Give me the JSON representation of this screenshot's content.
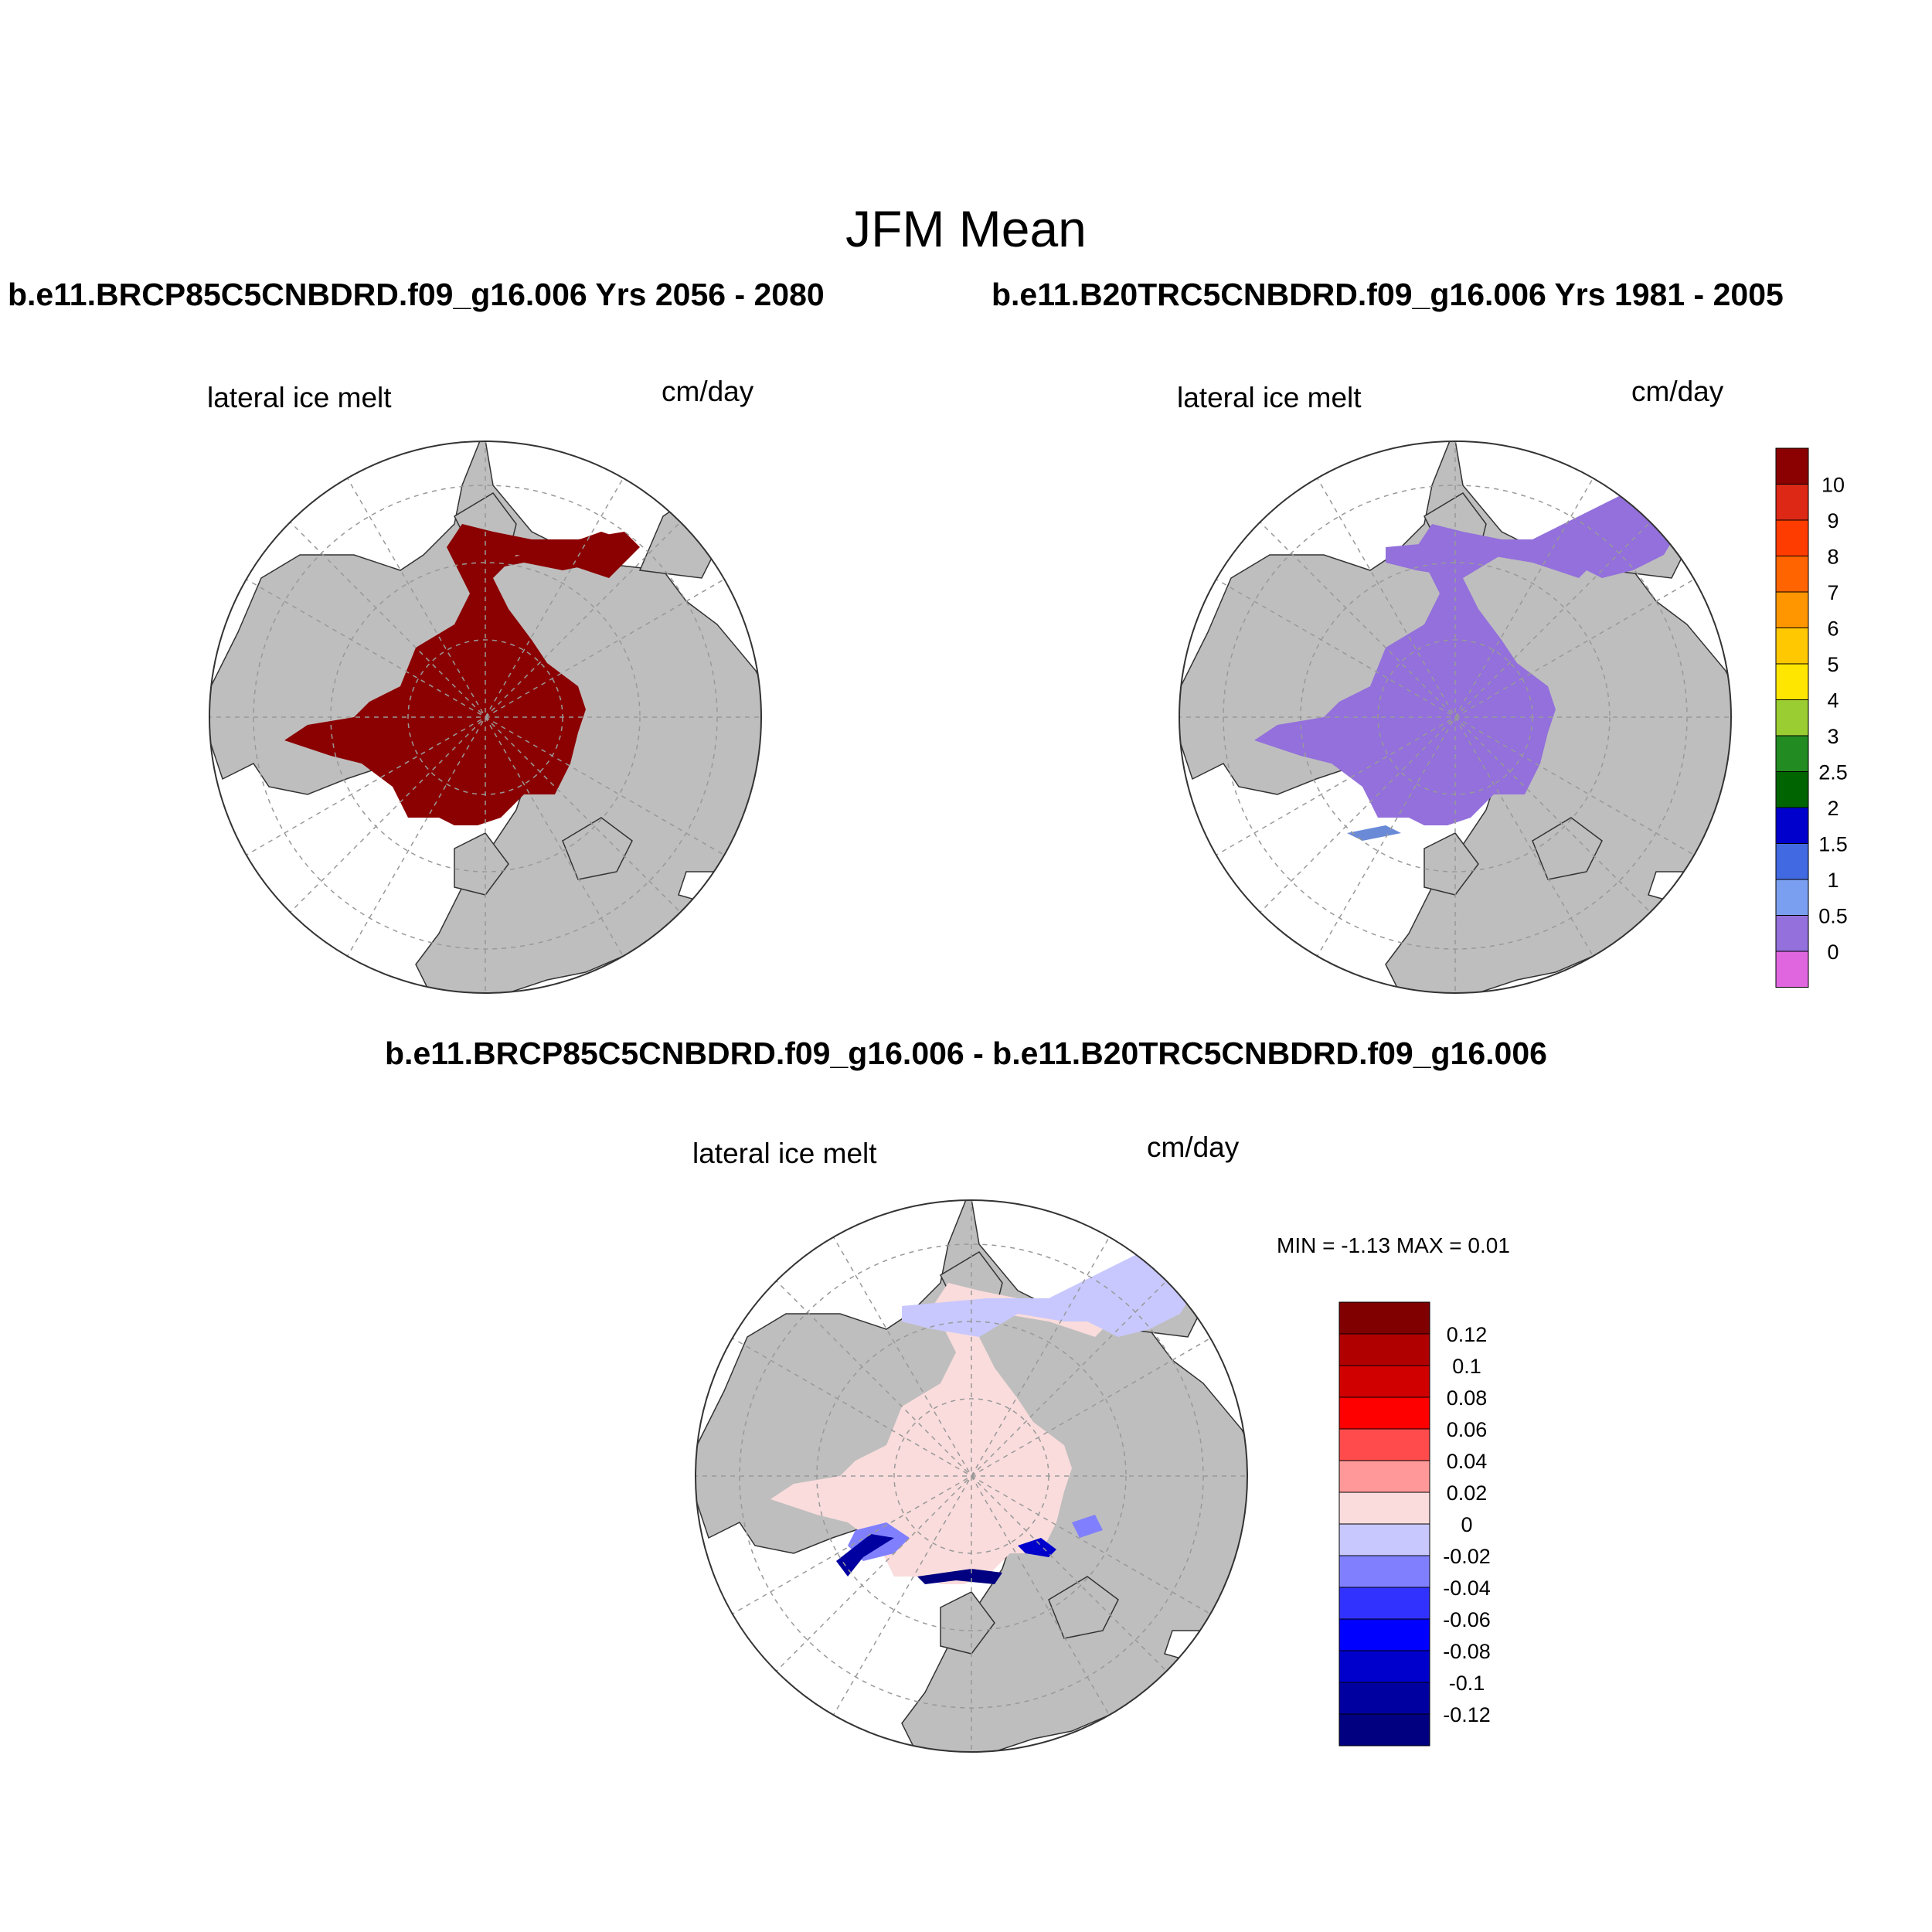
{
  "figure": {
    "title": "JFM Mean",
    "case1_title": "b.e11.BRCP85C5CNBDRD.f09_g16.006  Yrs 2056 - 2080",
    "case2_title": "b.e11.B20TRC5CNBDRD.f09_g16.006  Yrs 1981 - 2005",
    "diff_title": "b.e11.BRCP85C5CNBDRD.f09_g16.006 - b.e11.B20TRC5CNBDRD.f09_g16.006"
  },
  "panels": [
    {
      "id": "case1",
      "variable": "lateral ice melt",
      "units": "cm/day",
      "fill_color": "#8b0000"
    },
    {
      "id": "case2",
      "variable": "lateral ice melt",
      "units": "cm/day",
      "fill_color": "#9370db"
    },
    {
      "id": "diff",
      "variable": "lateral ice melt",
      "units": "cm/day",
      "fill_color": "#fadcdc",
      "minmax": "MIN =  -1.13 MAX =   0.01"
    }
  ],
  "colorbar_main": {
    "labels": [
      "10",
      "9",
      "8",
      "7",
      "6",
      "5",
      "4",
      "3",
      "2.5",
      "2",
      "1.5",
      "1",
      "0.5",
      "0"
    ],
    "colors": [
      "#8b0000",
      "#dc2814",
      "#ff3c00",
      "#ff6400",
      "#ff9600",
      "#ffc800",
      "#ffe600",
      "#9acd32",
      "#228b22",
      "#006400",
      "#0000cd",
      "#4169e1",
      "#7b9ff0",
      "#9370db",
      "#e066e0"
    ]
  },
  "colorbar_diff": {
    "labels": [
      "0.12",
      "0.1",
      "0.08",
      "0.06",
      "0.04",
      "0.02",
      "0",
      "-0.02",
      "-0.04",
      "-0.06",
      "-0.08",
      "-0.1",
      "-0.12"
    ],
    "colors": [
      "#800000",
      "#b00000",
      "#d00000",
      "#ff0000",
      "#ff4b4b",
      "#ff9999",
      "#fadcdc",
      "#c8c8ff",
      "#8080ff",
      "#3232ff",
      "#0000ff",
      "#0000cd",
      "#0000a0",
      "#000080"
    ]
  }
}
